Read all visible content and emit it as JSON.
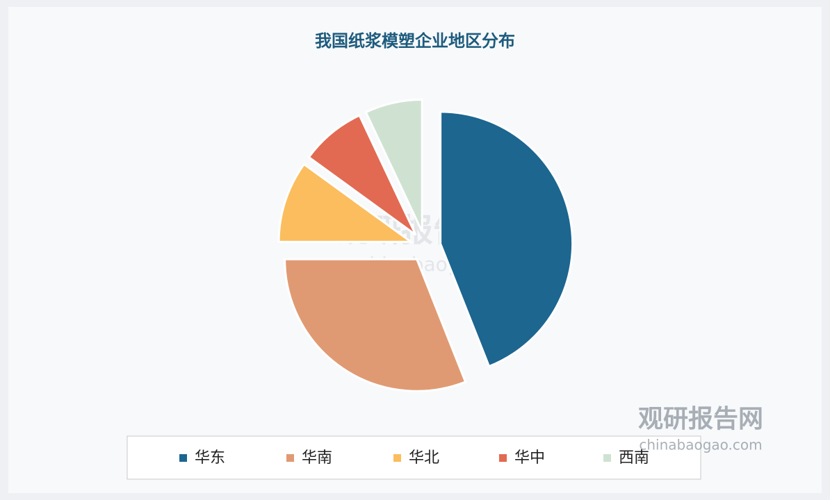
{
  "chart_data": {
    "type": "pie",
    "title": "我国纸浆模塑企业地区分布",
    "categories": [
      "华东",
      "华南",
      "华北",
      "华中",
      "西南"
    ],
    "values": [
      44,
      31,
      10,
      8,
      7
    ],
    "colors": [
      "#1c6690",
      "#e09a73",
      "#fbbd5e",
      "#e26a52",
      "#cfe2d1"
    ],
    "watermark": {
      "name": "观研报告网",
      "url": "chinabaogao.com"
    }
  }
}
